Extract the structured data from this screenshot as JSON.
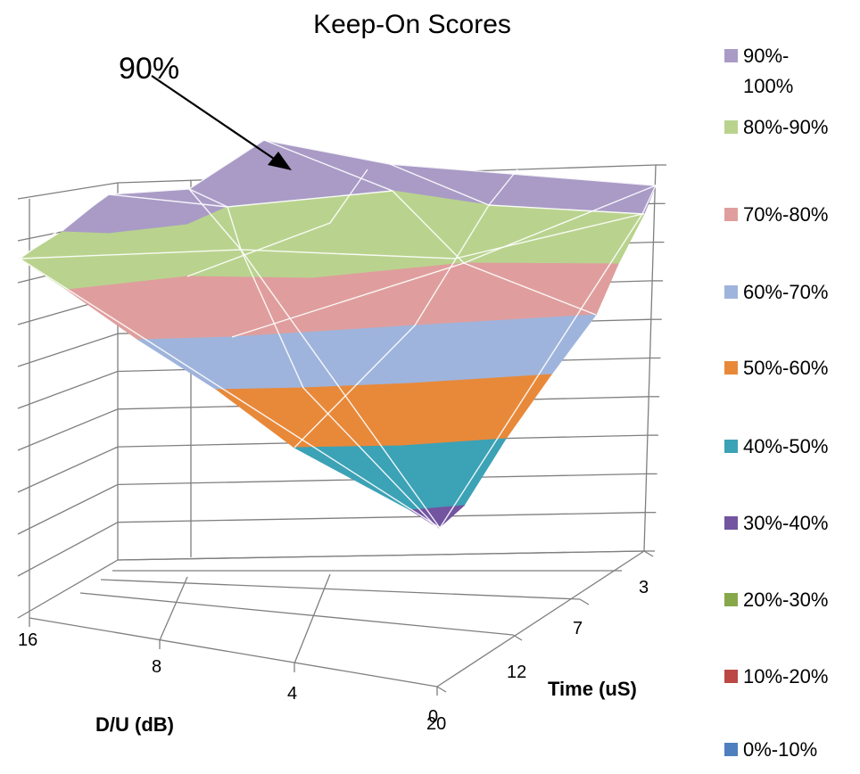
{
  "chart_data": {
    "type": "surface",
    "title": "Keep-On Scores",
    "annotation": {
      "text": "90%"
    },
    "x_axis": {
      "label": "D/U (dB)",
      "ticks": [
        "16",
        "8",
        "4",
        "0"
      ]
    },
    "y_axis": {
      "label": "Time (uS)",
      "ticks": [
        "3",
        "7",
        "12",
        "20"
      ]
    },
    "z_axis": {
      "ticks": []
    },
    "legend": {
      "position": "right",
      "entries": [
        {
          "label": "90%-\n100%",
          "color": "#a99bc6"
        },
        {
          "label": "80%-90%",
          "color": "#b9d38e"
        },
        {
          "label": "70%-80%",
          "color": "#df9e9d"
        },
        {
          "label": "60%-70%",
          "color": "#9fb4dc"
        },
        {
          "label": "50%-60%",
          "color": "#e8893a"
        },
        {
          "label": "40%-50%",
          "color": "#3ca2b6"
        },
        {
          "label": "30%-40%",
          "color": "#7254a0"
        },
        {
          "label": "20%-30%",
          "color": "#87a84a"
        },
        {
          "label": "10%-20%",
          "color": "#bb4844"
        },
        {
          "label": "0%-10%",
          "color": "#4f7fbf"
        }
      ]
    }
  }
}
